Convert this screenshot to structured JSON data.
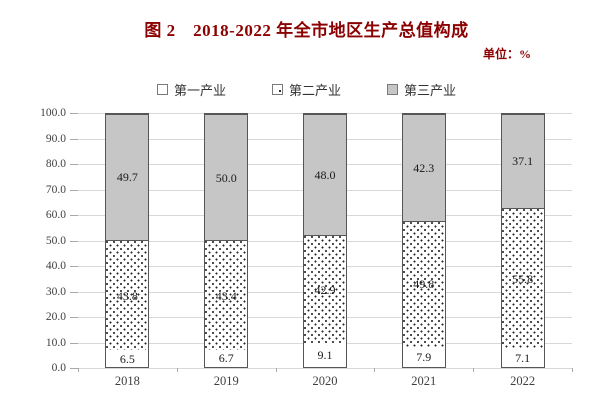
{
  "header": {
    "title": "图 2　2018-2022 年全市地区生产总值构成",
    "unit_label": "单位：%"
  },
  "colors": {
    "title_text": "#8b0000",
    "bar_border": "#565656",
    "primary_fill": "#ffffff",
    "secondary_pattern_dot": "#222222",
    "tertiary_fill": "#c6c6c6",
    "gridline": "#d8d8d8",
    "axis_text": "#3f3f3f"
  },
  "chart_data": {
    "type": "bar",
    "stacked": true,
    "title": "图 2　2018-2022 年全市地区生产总值构成",
    "unit": "单位：%",
    "categories": [
      "2018",
      "2019",
      "2020",
      "2021",
      "2022"
    ],
    "series": [
      {
        "name": "第一产业",
        "style": "white",
        "values": [
          6.5,
          6.7,
          9.1,
          7.9,
          7.1
        ]
      },
      {
        "name": "第二产业",
        "style": "dotted",
        "values": [
          43.8,
          43.4,
          42.9,
          49.8,
          55.8
        ]
      },
      {
        "name": "第三产业",
        "style": "gray",
        "values": [
          49.7,
          50.0,
          48.0,
          42.3,
          37.1
        ]
      }
    ],
    "ylim": [
      0,
      100
    ],
    "ytick_step": 10,
    "ytick_labels": [
      "0.0",
      "10.0",
      "20.0",
      "30.0",
      "40.0",
      "50.0",
      "60.0",
      "70.0",
      "80.0",
      "90.0",
      "100.0"
    ],
    "grid": true,
    "legend_position": "top",
    "data_labels": true
  }
}
